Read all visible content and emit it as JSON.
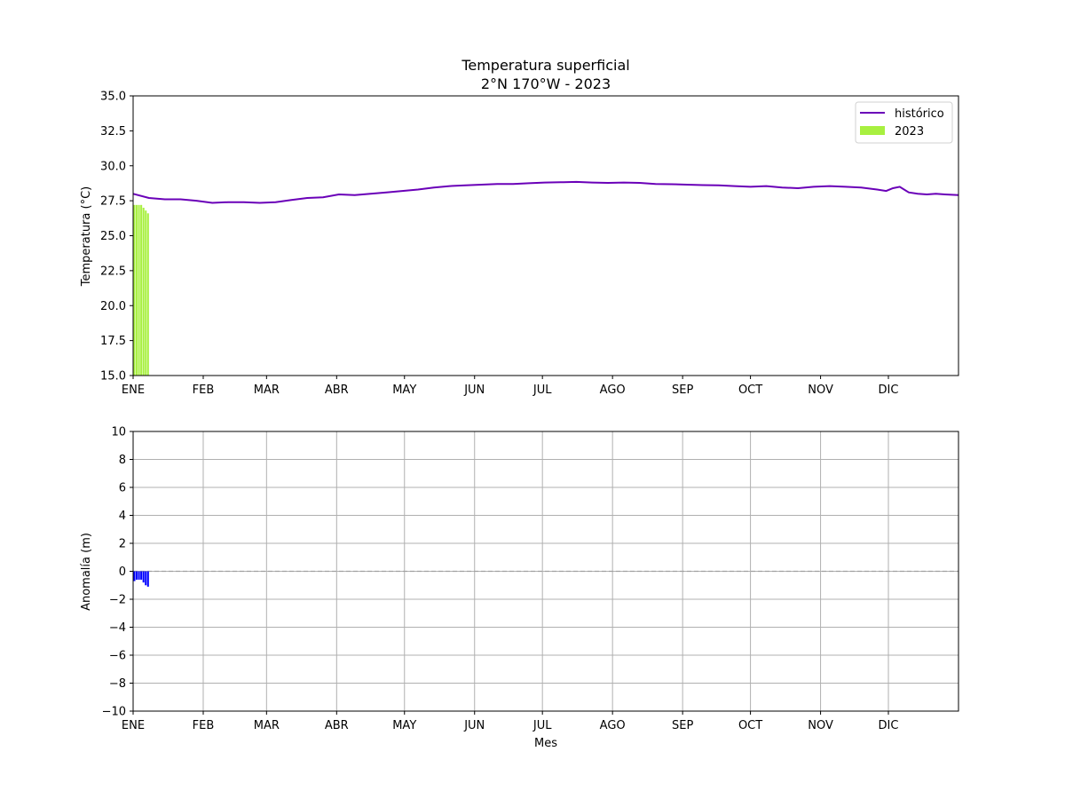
{
  "chart_data": [
    {
      "type": "line",
      "title": "Temperatura superficial",
      "subtitle": "2°N 170°W - 2023",
      "xlabel": "",
      "ylabel": "Temperatura (°C)",
      "ylim": [
        15.0,
        35.0
      ],
      "xlim": [
        1,
        366
      ],
      "yticks": [
        "15.0",
        "17.5",
        "20.0",
        "22.5",
        "25.0",
        "27.5",
        "30.0",
        "32.5",
        "35.0"
      ],
      "month_ticks": [
        {
          "label": "ENE",
          "day": 1
        },
        {
          "label": "FEB",
          "day": 32
        },
        {
          "label": "MAR",
          "day": 60
        },
        {
          "label": "ABR",
          "day": 91
        },
        {
          "label": "MAY",
          "day": 121
        },
        {
          "label": "JUN",
          "day": 152
        },
        {
          "label": "JUL",
          "day": 182
        },
        {
          "label": "AGO",
          "day": 213
        },
        {
          "label": "SEP",
          "day": 244
        },
        {
          "label": "OCT",
          "day": 274
        },
        {
          "label": "NOV",
          "day": 305
        },
        {
          "label": "DIC",
          "day": 335
        }
      ],
      "grid": false,
      "legend_position": "top-right",
      "legend": [
        {
          "name": "histórico",
          "kind": "line",
          "color": "#6a00b8"
        },
        {
          "name": "2023",
          "kind": "bar",
          "color": "#a8f040"
        }
      ],
      "series": [
        {
          "name": "histórico",
          "color": "#6a00b8",
          "x": [
            1,
            8,
            15,
            22,
            29,
            36,
            43,
            50,
            57,
            64,
            71,
            78,
            85,
            92,
            99,
            106,
            113,
            120,
            127,
            134,
            141,
            148,
            155,
            162,
            169,
            176,
            183,
            190,
            197,
            204,
            211,
            218,
            225,
            232,
            239,
            246,
            253,
            260,
            267,
            274,
            281,
            288,
            295,
            302,
            309,
            316,
            323,
            330,
            334,
            337,
            340,
            344,
            348,
            352,
            356,
            360,
            366
          ],
          "values": [
            28.0,
            27.7,
            27.6,
            27.6,
            27.5,
            27.35,
            27.4,
            27.4,
            27.35,
            27.4,
            27.55,
            27.7,
            27.75,
            27.95,
            27.9,
            28.0,
            28.1,
            28.2,
            28.3,
            28.45,
            28.55,
            28.6,
            28.65,
            28.7,
            28.7,
            28.75,
            28.8,
            28.82,
            28.85,
            28.8,
            28.78,
            28.8,
            28.78,
            28.7,
            28.68,
            28.65,
            28.62,
            28.6,
            28.55,
            28.5,
            28.55,
            28.45,
            28.4,
            28.5,
            28.55,
            28.5,
            28.45,
            28.3,
            28.2,
            28.4,
            28.5,
            28.1,
            28.0,
            27.95,
            28.0,
            27.95,
            27.9
          ]
        },
        {
          "name": "2023",
          "type": "bar",
          "color": "#a8f040",
          "x": [
            1,
            2,
            3,
            4,
            5,
            6,
            7
          ],
          "values": [
            27.2,
            27.2,
            27.2,
            27.2,
            27.0,
            26.8,
            26.6
          ]
        }
      ]
    },
    {
      "type": "bar",
      "title": "",
      "xlabel": "Mes",
      "ylabel": "Anomalía (m)",
      "ylim": [
        -10,
        10
      ],
      "xlim": [
        1,
        366
      ],
      "yticks": [
        "−10",
        "−8",
        "−6",
        "−4",
        "−2",
        "0",
        "2",
        "4",
        "6",
        "8",
        "10"
      ],
      "grid": true,
      "zero_line": "dashed",
      "month_ticks": [
        {
          "label": "ENE",
          "day": 1
        },
        {
          "label": "FEB",
          "day": 32
        },
        {
          "label": "MAR",
          "day": 60
        },
        {
          "label": "ABR",
          "day": 91
        },
        {
          "label": "MAY",
          "day": 121
        },
        {
          "label": "JUN",
          "day": 152
        },
        {
          "label": "JUL",
          "day": 182
        },
        {
          "label": "AGO",
          "day": 213
        },
        {
          "label": "SEP",
          "day": 244
        },
        {
          "label": "OCT",
          "day": 274
        },
        {
          "label": "NOV",
          "day": 305
        },
        {
          "label": "DIC",
          "day": 335
        }
      ],
      "series": [
        {
          "color": "#0000ff",
          "x": [
            1,
            2,
            3,
            4,
            5,
            6,
            7
          ],
          "values": [
            -0.7,
            -0.6,
            -0.6,
            -0.6,
            -0.8,
            -1.0,
            -1.1
          ]
        }
      ]
    }
  ]
}
